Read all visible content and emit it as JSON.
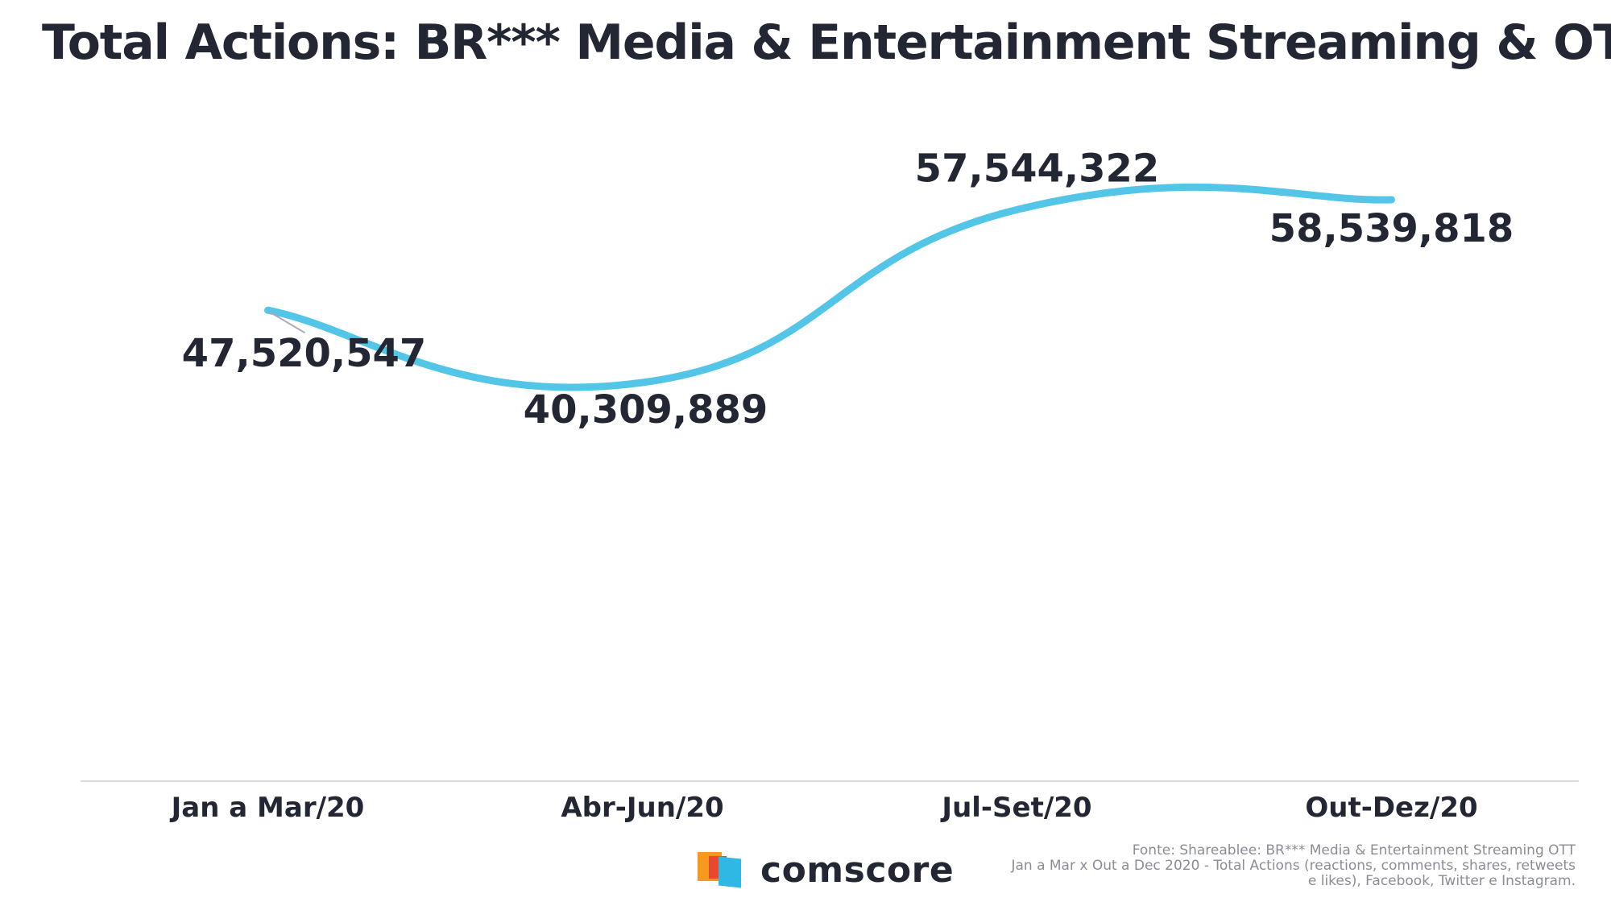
{
  "title": "Total Actions: BR*** Media & Entertainment Streaming & OTT",
  "chart_data": {
    "type": "line",
    "categories": [
      "Jan a Mar/20",
      "Abr-Jun/20",
      "Jul-Set/20",
      "Out-Dez/20"
    ],
    "series": [
      {
        "values": [
          47520547,
          40309889,
          57544322,
          58539818
        ],
        "labels": [
          "47,520,547",
          "40,309,889",
          "57,544,322",
          "58,539,818"
        ]
      }
    ],
    "line_color": "#53c6e8",
    "axis_color": "#d9dbe0",
    "text_color": "#232733",
    "grid": false,
    "legend": "none"
  },
  "source": {
    "line1": "Fonte: Shareablee: BR*** Media & Entertainment Streaming OTT",
    "line2": "Jan a Mar x Out a Dec 2020 - Total Actions (reactions, comments, shares, retweets",
    "line3": "e likes), Facebook, Twitter e Instagram."
  },
  "logo": {
    "text": "comscore"
  }
}
